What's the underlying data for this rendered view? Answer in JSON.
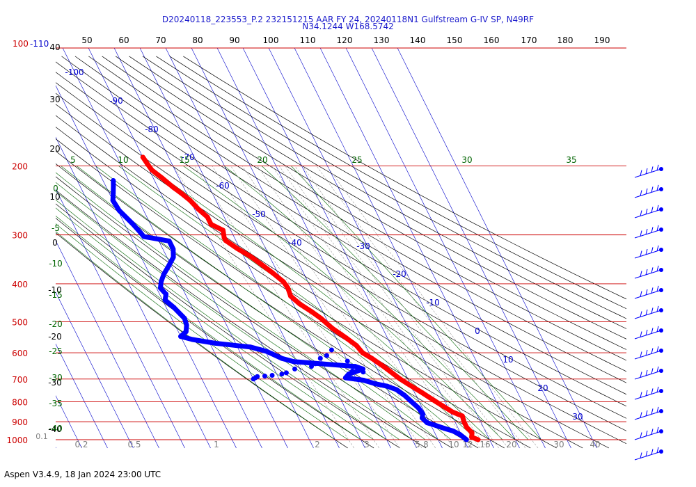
{
  "header": {
    "title_line1": "D20240118_223553_P.2 232151215 AAR FY 24, 20240118N1 Gulfstream G-IV SP, N49RF",
    "title_line2": "N34.1244 W168.5742"
  },
  "footer": {
    "text": "Aspen V3.4.9, 18 Jan 2024  23:00 UTC"
  },
  "colors": {
    "temperature": "#ff0000",
    "dewpoint": "#0000ff",
    "isobar": "#cc0000",
    "isotherm": "#0000cc",
    "dry_adiabat": "#000000",
    "moist_adiabat": "#006400",
    "mixing_ratio": "#999999"
  },
  "chart_data": {
    "type": "skew-t",
    "y_scale": "log-pressure",
    "ylim_hpa": [
      1000,
      100
    ],
    "pressure_labels": [
      {
        "p": 1000,
        "label": "1000"
      },
      {
        "p": 900,
        "label": "900"
      },
      {
        "p": 800,
        "label": "800"
      },
      {
        "p": 700,
        "label": "700"
      },
      {
        "p": 600,
        "label": "600"
      },
      {
        "p": 500,
        "label": "500"
      },
      {
        "p": 400,
        "label": "400"
      },
      {
        "p": 300,
        "label": "300"
      },
      {
        "p": 200,
        "label": "200"
      },
      {
        "p": 100,
        "label": "100"
      }
    ],
    "top_left_labels": [
      "100",
      "-110"
    ],
    "corner_label": "0.1",
    "theta_top_labels": [
      "50",
      "60",
      "70",
      "80",
      "90",
      "100",
      "110",
      "120",
      "130",
      "140",
      "150",
      "160",
      "170",
      "180",
      "190"
    ],
    "theta_left_labels": [
      "40",
      "30",
      "20",
      "10",
      "0",
      "-10",
      "-20",
      "-30",
      "-40"
    ],
    "isotherm_labels": [
      "-100",
      "-90",
      "-80",
      "-70",
      "-60",
      "-50",
      "-40",
      "-30",
      "-20",
      "-10",
      "0",
      "10",
      "20",
      "30"
    ],
    "moist_top_labels": [
      "5",
      "10",
      "15",
      "20",
      "25",
      "30",
      "35"
    ],
    "moist_left_labels": [
      "0",
      "-5",
      "-10",
      "-15",
      "-20",
      "-25",
      "-30",
      "-35",
      "-40"
    ],
    "mixing_ratio_labels": [
      "0.2",
      "0.5",
      "1",
      "2",
      "3",
      "5",
      "8",
      "10",
      "12",
      "16",
      "20",
      "30",
      "40"
    ],
    "temperature_profile": [
      {
        "p": 1000,
        "t": 15.5
      },
      {
        "p": 985,
        "t": 13.5
      },
      {
        "p": 960,
        "t": 14.5
      },
      {
        "p": 930,
        "t": 13.5
      },
      {
        "p": 900,
        "t": 13.5
      },
      {
        "p": 870,
        "t": 14.0
      },
      {
        "p": 850,
        "t": 11.0
      },
      {
        "p": 800,
        "t": 6.5
      },
      {
        "p": 760,
        "t": 3.0
      },
      {
        "p": 720,
        "t": -1.0
      },
      {
        "p": 700,
        "t": -3.0
      },
      {
        "p": 650,
        "t": -7.0
      },
      {
        "p": 620,
        "t": -10.0
      },
      {
        "p": 600,
        "t": -12.5
      },
      {
        "p": 575,
        "t": -13.5
      },
      {
        "p": 550,
        "t": -16.0
      },
      {
        "p": 520,
        "t": -19.5
      },
      {
        "p": 490,
        "t": -22.0
      },
      {
        "p": 470,
        "t": -24.5
      },
      {
        "p": 450,
        "t": -27.5
      },
      {
        "p": 430,
        "t": -29.5
      },
      {
        "p": 410,
        "t": -29.0
      },
      {
        "p": 395,
        "t": -29.5
      },
      {
        "p": 375,
        "t": -32.0
      },
      {
        "p": 355,
        "t": -35.0
      },
      {
        "p": 340,
        "t": -37.5
      },
      {
        "p": 325,
        "t": -41.0
      },
      {
        "p": 310,
        "t": -44.0
      },
      {
        "p": 305,
        "t": -44.0
      },
      {
        "p": 292,
        "t": -43.0
      },
      {
        "p": 282,
        "t": -46.5
      },
      {
        "p": 270,
        "t": -46.5
      },
      {
        "p": 258,
        "t": -48.5
      },
      {
        "p": 245,
        "t": -50.0
      },
      {
        "p": 235,
        "t": -52.0
      },
      {
        "p": 227,
        "t": -54.0
      },
      {
        "p": 215,
        "t": -56.5
      },
      {
        "p": 205,
        "t": -59.0
      },
      {
        "p": 198,
        "t": -59.5
      },
      {
        "p": 190,
        "t": -60.0
      }
    ],
    "dewpoint_profile": [
      {
        "p": 1000,
        "t": 11.0
      },
      {
        "p": 990,
        "t": 10.5
      },
      {
        "p": 970,
        "t": 9.5
      },
      {
        "p": 950,
        "t": 7.5
      },
      {
        "p": 935,
        "t": 4.5
      },
      {
        "p": 915,
        "t": 1.0
      },
      {
        "p": 905,
        "t": -1.0
      },
      {
        "p": 880,
        "t": -2.0
      },
      {
        "p": 860,
        "t": -1.0
      },
      {
        "p": 830,
        "t": -1.5
      },
      {
        "p": 800,
        "t": -3.0
      },
      {
        "p": 770,
        "t": -4.5
      },
      {
        "p": 745,
        "t": -6.5
      },
      {
        "p": 730,
        "t": -9.5
      },
      {
        "p": 720,
        "t": -13.5
      },
      {
        "p": 705,
        "t": -17.5
      },
      {
        "p": 695,
        "t": -24.0
      },
      {
        "p": 680,
        "t": -22.0
      },
      {
        "p": 660,
        "t": -15.5
      },
      {
        "p": 650,
        "t": -18.0
      },
      {
        "p": 632,
        "t": -41.0
      },
      {
        "p": 620,
        "t": -45.0
      },
      {
        "p": 595,
        "t": -49.5
      },
      {
        "p": 580,
        "t": -55.0
      },
      {
        "p": 567,
        "t": -68.0
      },
      {
        "p": 555,
        "t": -76.0
      },
      {
        "p": 545,
        "t": -80.0
      },
      {
        "p": 530,
        "t": -77.0
      },
      {
        "p": 510,
        "t": -75.5
      },
      {
        "p": 490,
        "t": -75.0
      },
      {
        "p": 460,
        "t": -77.0
      },
      {
        "p": 440,
        "t": -79.0
      },
      {
        "p": 425,
        "t": -77.5
      },
      {
        "p": 410,
        "t": -78.5
      },
      {
        "p": 395,
        "t": -77.0
      },
      {
        "p": 378,
        "t": -74.5
      },
      {
        "p": 360,
        "t": -71.0
      },
      {
        "p": 342,
        "t": -67.5
      },
      {
        "p": 326,
        "t": -66.0
      },
      {
        "p": 311,
        "t": -66.0
      },
      {
        "p": 303,
        "t": -75.0
      },
      {
        "p": 296,
        "t": -75.5
      },
      {
        "p": 280,
        "t": -77.0
      },
      {
        "p": 260,
        "t": -79.5
      },
      {
        "p": 245,
        "t": -80.0
      },
      {
        "p": 235,
        "t": -78.5
      },
      {
        "p": 225,
        "t": -77.0
      },
      {
        "p": 218,
        "t": -76.0
      }
    ],
    "dewpoint_scatter": [
      {
        "p": 700,
        "t": -60.0
      },
      {
        "p": 695,
        "t": -59.0
      },
      {
        "p": 690,
        "t": -58.0
      },
      {
        "p": 688,
        "t": -55.0
      },
      {
        "p": 685,
        "t": -52.0
      },
      {
        "p": 680,
        "t": -48.0
      },
      {
        "p": 675,
        "t": -46.0
      },
      {
        "p": 660,
        "t": -42.0
      },
      {
        "p": 650,
        "t": -35.0
      },
      {
        "p": 640,
        "t": -33.0
      },
      {
        "p": 620,
        "t": -30.0
      },
      {
        "p": 610,
        "t": -27.0
      },
      {
        "p": 590,
        "t": -24.0
      },
      {
        "p": 630,
        "t": -20.0
      },
      {
        "p": 668,
        "t": -20.0
      },
      {
        "p": 672,
        "t": -16.0
      }
    ],
    "wind_barbs_count": 15
  }
}
